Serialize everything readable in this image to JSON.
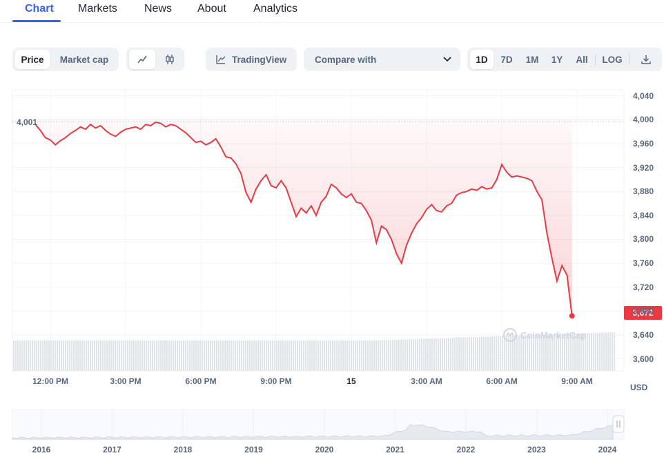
{
  "tabs": [
    {
      "label": "Chart",
      "active": true
    },
    {
      "label": "Markets"
    },
    {
      "label": "News"
    },
    {
      "label": "About"
    },
    {
      "label": "Analytics"
    }
  ],
  "toolbar": {
    "price_label": "Price",
    "market_cap_label": "Market cap",
    "line_icon": "line-chart-icon",
    "candle_icon": "candlestick-icon",
    "tradingview_label": "TradingView",
    "compare_label": "Compare with",
    "ranges": [
      "1D",
      "7D",
      "1M",
      "1Y",
      "All",
      "LOG"
    ],
    "active_range": "1D",
    "download_icon": "download-icon"
  },
  "chart_data": {
    "type": "area",
    "start_label": "4,001",
    "current_price_label": "3,672",
    "current_price": 3672,
    "ylim": [
      3580,
      4050
    ],
    "y_ticks": [
      "4,040",
      "4,000",
      "3,960",
      "3,920",
      "3,880",
      "3,840",
      "3,800",
      "3,760",
      "3,720",
      "3,680",
      "3,640",
      "3,600"
    ],
    "x_ticks": [
      "12:00 PM",
      "3:00 PM",
      "6:00 PM",
      "9:00 PM",
      "15",
      "3:00 AM",
      "6:00 AM",
      "9:00 AM"
    ],
    "y_unit": "USD",
    "line_color": "#ea3943",
    "series": [
      {
        "values": [
          [
            11.4,
            3992
          ],
          [
            11.6,
            3982
          ],
          [
            11.8,
            3970
          ],
          [
            12.0,
            3966
          ],
          [
            12.2,
            3958
          ],
          [
            12.4,
            3965
          ],
          [
            12.6,
            3970
          ],
          [
            12.8,
            3977
          ],
          [
            13.0,
            3982
          ],
          [
            13.2,
            3988
          ],
          [
            13.4,
            3984
          ],
          [
            13.6,
            3992
          ],
          [
            13.8,
            3986
          ],
          [
            14.0,
            3990
          ],
          [
            14.2,
            3982
          ],
          [
            14.4,
            3976
          ],
          [
            14.6,
            3972
          ],
          [
            14.8,
            3979
          ],
          [
            15.0,
            3984
          ],
          [
            15.2,
            3986
          ],
          [
            15.4,
            3988
          ],
          [
            15.6,
            3984
          ],
          [
            15.8,
            3992
          ],
          [
            16.0,
            3990
          ],
          [
            16.2,
            3996
          ],
          [
            16.4,
            3994
          ],
          [
            16.6,
            3988
          ],
          [
            16.8,
            3992
          ],
          [
            17.0,
            3990
          ],
          [
            17.2,
            3984
          ],
          [
            17.4,
            3978
          ],
          [
            17.6,
            3970
          ],
          [
            17.8,
            3962
          ],
          [
            18.0,
            3964
          ],
          [
            18.2,
            3958
          ],
          [
            18.4,
            3962
          ],
          [
            18.6,
            3968
          ],
          [
            18.8,
            3954
          ],
          [
            19.0,
            3938
          ],
          [
            19.2,
            3936
          ],
          [
            19.4,
            3926
          ],
          [
            19.6,
            3910
          ],
          [
            19.8,
            3878
          ],
          [
            20.0,
            3862
          ],
          [
            20.2,
            3884
          ],
          [
            20.4,
            3898
          ],
          [
            20.6,
            3908
          ],
          [
            20.8,
            3890
          ],
          [
            21.0,
            3886
          ],
          [
            21.2,
            3898
          ],
          [
            21.4,
            3886
          ],
          [
            21.6,
            3862
          ],
          [
            21.8,
            3838
          ],
          [
            22.0,
            3852
          ],
          [
            22.2,
            3844
          ],
          [
            22.4,
            3856
          ],
          [
            22.6,
            3840
          ],
          [
            22.8,
            3862
          ],
          [
            23.0,
            3872
          ],
          [
            23.2,
            3892
          ],
          [
            23.4,
            3886
          ],
          [
            23.6,
            3876
          ],
          [
            23.8,
            3870
          ],
          [
            24.0,
            3876
          ],
          [
            24.2,
            3862
          ],
          [
            24.4,
            3860
          ],
          [
            24.6,
            3848
          ],
          [
            24.8,
            3832
          ],
          [
            25.0,
            3794
          ],
          [
            25.2,
            3822
          ],
          [
            25.4,
            3816
          ],
          [
            25.6,
            3800
          ],
          [
            25.8,
            3776
          ],
          [
            26.0,
            3760
          ],
          [
            26.2,
            3790
          ],
          [
            26.4,
            3810
          ],
          [
            26.6,
            3826
          ],
          [
            26.8,
            3836
          ],
          [
            27.0,
            3850
          ],
          [
            27.2,
            3858
          ],
          [
            27.4,
            3848
          ],
          [
            27.6,
            3846
          ],
          [
            27.8,
            3856
          ],
          [
            28.0,
            3860
          ],
          [
            28.2,
            3874
          ],
          [
            28.4,
            3878
          ],
          [
            28.6,
            3880
          ],
          [
            28.8,
            3884
          ],
          [
            29.0,
            3882
          ],
          [
            29.2,
            3888
          ],
          [
            29.4,
            3884
          ],
          [
            29.6,
            3886
          ],
          [
            29.8,
            3900
          ],
          [
            30.0,
            3925
          ],
          [
            30.2,
            3912
          ],
          [
            30.4,
            3904
          ],
          [
            30.6,
            3906
          ],
          [
            30.8,
            3904
          ],
          [
            31.0,
            3902
          ],
          [
            31.2,
            3898
          ],
          [
            31.4,
            3880
          ],
          [
            31.6,
            3866
          ],
          [
            31.8,
            3810
          ],
          [
            32.0,
            3768
          ],
          [
            32.2,
            3730
          ],
          [
            32.4,
            3756
          ],
          [
            32.6,
            3740
          ],
          [
            32.8,
            3672
          ]
        ]
      }
    ],
    "volume_note": "bars"
  },
  "navigator": {
    "years": [
      "2016",
      "2017",
      "2018",
      "2019",
      "2020",
      "2021",
      "2022",
      "2023",
      "2024"
    ]
  },
  "watermark": "CoinMarketCap"
}
